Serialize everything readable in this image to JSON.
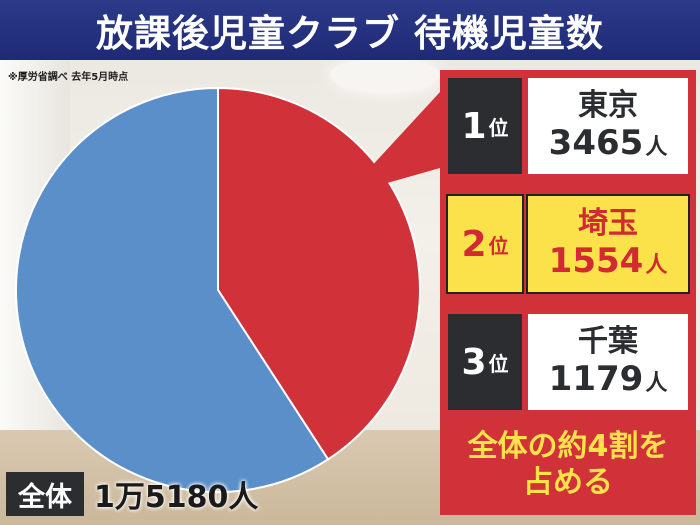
{
  "title": "放課後児童クラブ 待機児童数",
  "source_note": "※厚労省調べ 去年5月時点",
  "ranking": [
    {
      "rank": "1",
      "rank_unit": "位",
      "name": "東京",
      "value": "3465",
      "unit": "人"
    },
    {
      "rank": "2",
      "rank_unit": "位",
      "name": "埼玉",
      "value": "1554",
      "unit": "人"
    },
    {
      "rank": "3",
      "rank_unit": "位",
      "name": "千葉",
      "value": "1179",
      "unit": "人"
    }
  ],
  "conclusion": {
    "line1": "全体の約4割を",
    "line2": "占める"
  },
  "total": {
    "label": "全体",
    "value": "1万5180人"
  },
  "colors": {
    "red": "#d1323a",
    "blue": "#5b8fc9",
    "navy": "#1e2a75",
    "yellow": "#fbe24a",
    "dark": "#2b2d31"
  },
  "chart_data": {
    "type": "pie",
    "slices": [
      {
        "value": 6198
      },
      {
        "value": 8982
      }
    ],
    "slice_colors": [
      "#d1323a",
      "#5b8fc9"
    ]
  }
}
